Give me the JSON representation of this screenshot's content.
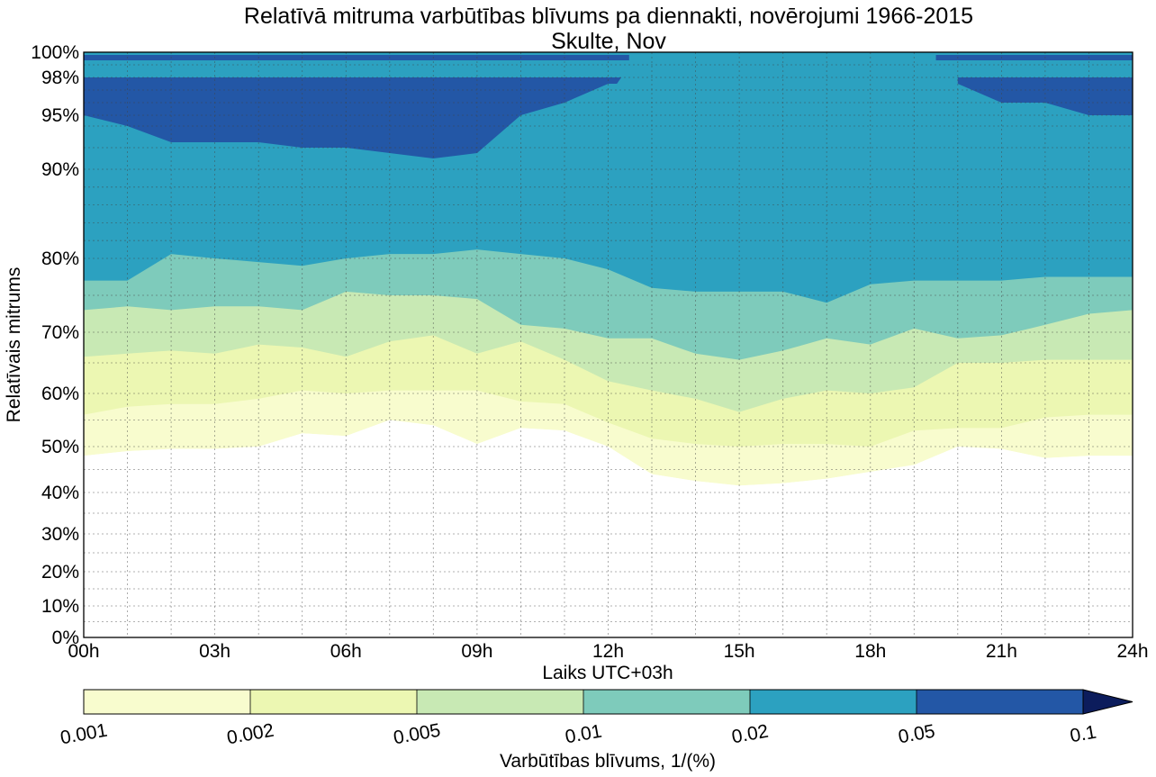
{
  "chart_data": {
    "type": "contour",
    "title": "Relatīvā mitruma varbūtības blīvums pa diennakti, novērojumi 1966-2015",
    "subtitle": "Skulte, Nov",
    "xlabel": "Laiks UTC+03h",
    "ylabel": "Relatīvais mitrums",
    "x_ticks": [
      "00h",
      "03h",
      "06h",
      "09h",
      "12h",
      "15h",
      "18h",
      "21h",
      "24h"
    ],
    "x_range_hours": [
      0,
      24
    ],
    "y_ticks": [
      {
        "value": 0,
        "label": "0%"
      },
      {
        "value": 10,
        "label": "10%"
      },
      {
        "value": 20,
        "label": "20%"
      },
      {
        "value": 30,
        "label": "30%"
      },
      {
        "value": 40,
        "label": "40%"
      },
      {
        "value": 50,
        "label": "50%"
      },
      {
        "value": 60,
        "label": "60%"
      },
      {
        "value": 70,
        "label": "70%"
      },
      {
        "value": 80,
        "label": "80%"
      },
      {
        "value": 90,
        "label": "90%"
      },
      {
        "value": 95,
        "label": "95%"
      },
      {
        "value": 98,
        "label": "98%"
      },
      {
        "value": 100,
        "label": "100%"
      }
    ],
    "y_scale": "nonlinear (expanded near 100%)",
    "grid": true,
    "colorbar": {
      "label": "Varbūtības blīvums, 1/(%)",
      "levels": [
        0.001,
        0.002,
        0.005,
        0.01,
        0.02,
        0.05,
        0.1
      ],
      "level_labels": [
        "0.001",
        "0.002",
        "0.005",
        "0.01",
        "0.02",
        "0.05",
        "0.1"
      ],
      "colors": [
        "#f8fcce",
        "#ecf7b2",
        "#c8e9b4",
        "#7ecbbb",
        "#2ca1c0",
        "#2357a6",
        "#0c1c5c"
      ],
      "extend": "max"
    },
    "hours": [
      0,
      1,
      2,
      3,
      4,
      5,
      6,
      7,
      8,
      9,
      10,
      11,
      12,
      13,
      14,
      15,
      16,
      17,
      18,
      19,
      20,
      21,
      22,
      23,
      24
    ],
    "contour_boundaries": [
      {
        "level": 0.001,
        "lower_rh": [
          48,
          49,
          49.5,
          49.5,
          50,
          52.5,
          52,
          55,
          54,
          50.5,
          53.5,
          53,
          50,
          44,
          42.5,
          41.5,
          42,
          43,
          44.5,
          46,
          50,
          49.5,
          47.5,
          48,
          48
        ]
      },
      {
        "level": 0.002,
        "lower_rh": [
          56,
          57.5,
          58,
          58,
          59,
          60.5,
          60,
          60.5,
          60.5,
          60.5,
          58.5,
          58,
          54.5,
          51.5,
          50.5,
          50,
          50.5,
          50.5,
          50,
          53,
          53.5,
          53.5,
          55.5,
          56,
          56
        ]
      },
      {
        "level": 0.005,
        "lower_rh": [
          66,
          66.5,
          67,
          66.5,
          68,
          67.5,
          66,
          68.5,
          69.5,
          66.5,
          68.5,
          65.5,
          62,
          60.5,
          59,
          56.5,
          59,
          60.5,
          60,
          61,
          65,
          65,
          65.5,
          65.5,
          65.5
        ]
      },
      {
        "level": 0.01,
        "lower_rh": [
          73,
          73.5,
          73,
          73.5,
          73.5,
          73,
          75.5,
          75,
          75,
          74.5,
          71,
          70.5,
          69,
          69,
          66.5,
          65.5,
          67,
          69,
          68,
          70.5,
          69,
          69.5,
          71,
          72.5,
          73
        ]
      },
      {
        "level": 0.02,
        "lower_rh": [
          77,
          77,
          80.5,
          80,
          79.5,
          79,
          80,
          80.5,
          80.5,
          81,
          80.5,
          80,
          78.5,
          76,
          75.5,
          75.5,
          75.5,
          74,
          76.5,
          77,
          77,
          77,
          77.5,
          77.5,
          77.5
        ]
      },
      {
        "level": 0.05,
        "lower_rh": [
          95,
          94,
          92.5,
          92.5,
          92.5,
          92,
          92,
          91.5,
          91,
          91.5,
          95,
          96,
          97.5,
          null,
          null,
          null,
          null,
          null,
          null,
          null,
          97.5,
          96,
          96,
          95,
          95
        ]
      }
    ]
  }
}
